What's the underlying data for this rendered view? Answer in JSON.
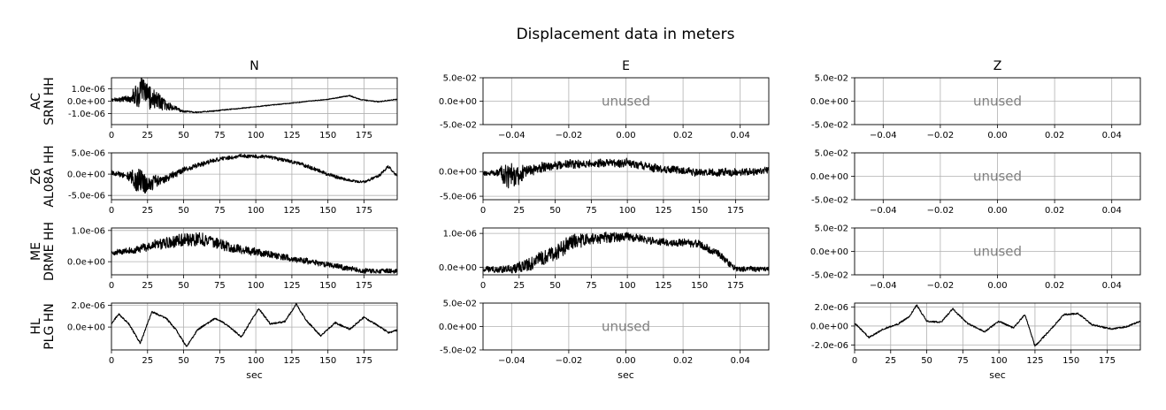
{
  "chart_data": {
    "type": "line",
    "title": "Displacement data in meters",
    "columns": [
      "N",
      "E",
      "Z"
    ],
    "stations": [
      {
        "network": "AC",
        "station": "SRN HH"
      },
      {
        "network": "Z6",
        "station": "AL08A HH"
      },
      {
        "network": "ME",
        "station": "DRME HH"
      },
      {
        "network": "HL",
        "station": "PLG HN"
      }
    ],
    "xlabel": "sec",
    "unused_label": "unused",
    "time_xlim": [
      0,
      198
    ],
    "time_xticks": [
      "0",
      "25",
      "50",
      "75",
      "100",
      "125",
      "150",
      "175"
    ],
    "unused_xlim": [
      -0.05,
      0.05
    ],
    "unused_xticks": [
      "−0.04",
      "−0.02",
      "0.00",
      "0.02",
      "0.04"
    ],
    "unused_ylim": [
      -0.05,
      0.05
    ],
    "unused_yticks": [
      "5.0e-02",
      "0.0e+00",
      "-5.0e-02"
    ],
    "panels": [
      [
        {
          "used": true,
          "ylim": [
            -1.9e-06,
            1.9e-06
          ],
          "yticks": [
            1e-06,
            0,
            -1e-06
          ],
          "yticklabels": [
            "1.0e-06",
            "0.0e+00",
            "-1.0e-06"
          ],
          "noise_scale": 0.12,
          "envelope": [
            [
              0,
              1e-07,
              1.5e-07
            ],
            [
              12,
              2e-07,
              3e-07
            ],
            [
              15,
              5e-07,
              8e-07
            ],
            [
              20,
              6e-07,
              1.6e-06
            ],
            [
              24,
              5e-07,
              1.3e-06
            ],
            [
              30,
              1e-07,
              1e-06
            ],
            [
              40,
              -4e-07,
              4e-07
            ],
            [
              50,
              -8.5e-07,
              1e-07
            ],
            [
              60,
              -9e-07,
              6e-08
            ],
            [
              75,
              -7.5e-07,
              5e-08
            ],
            [
              100,
              -4.5e-07,
              4e-08
            ],
            [
              125,
              -1.5e-07,
              4e-08
            ],
            [
              150,
              1.5e-07,
              4e-08
            ],
            [
              165,
              4.5e-07,
              5e-08
            ],
            [
              172,
              1.5e-07,
              5e-08
            ],
            [
              185,
              -5e-08,
              5e-08
            ],
            [
              198,
              1.5e-07,
              5e-08
            ]
          ]
        },
        {
          "used": false
        },
        {
          "used": false
        }
      ],
      [
        {
          "used": true,
          "ylim": [
            -6e-06,
            5e-06
          ],
          "yticks": [
            5e-06,
            0,
            -5e-06
          ],
          "yticklabels": [
            "5.0e-06",
            "0.0e+00",
            "-5.0e-06"
          ],
          "noise_scale": 0.15,
          "envelope": [
            [
              0,
              3e-07,
              6e-07
            ],
            [
              10,
              -3e-07,
              8e-07
            ],
            [
              18,
              -1.5e-06,
              3.5e-06
            ],
            [
              25,
              -2e-06,
              2.5e-06
            ],
            [
              35,
              -1.5e-06,
              1.2e-06
            ],
            [
              50,
              1e-06,
              8e-07
            ],
            [
              70,
              3.2e-06,
              6e-07
            ],
            [
              90,
              4.3e-06,
              5e-07
            ],
            [
              110,
              4e-06,
              5e-07
            ],
            [
              130,
              2.5e-06,
              5e-07
            ],
            [
              150,
              0.0,
              5e-07
            ],
            [
              165,
              -1.5e-06,
              4e-07
            ],
            [
              175,
              -1.8e-06,
              4e-07
            ],
            [
              185,
              -5e-07,
              4e-07
            ],
            [
              192,
              1.8e-06,
              4e-07
            ],
            [
              198,
              -5e-07,
              4e-07
            ]
          ]
        },
        {
          "used": true,
          "ylim": [
            -5.7e-06,
            3.8e-06
          ],
          "yticks": [
            0,
            -5e-06
          ],
          "yticklabels": [
            "0.0e+00",
            "-5.0e-06"
          ],
          "noise_scale": 0.15,
          "envelope": [
            [
              0,
              -4e-07,
              5e-07
            ],
            [
              10,
              -2e-07,
              8e-07
            ],
            [
              16,
              -5e-07,
              3.5e-06
            ],
            [
              22,
              -8e-07,
              3e-06
            ],
            [
              30,
              2e-07,
              1.5e-06
            ],
            [
              50,
              1.3e-06,
              1e-06
            ],
            [
              75,
              1.6e-06,
              1e-06
            ],
            [
              100,
              1.8e-06,
              1e-06
            ],
            [
              125,
              5e-07,
              9e-07
            ],
            [
              150,
              -2e-07,
              9e-07
            ],
            [
              175,
              -1e-07,
              9e-07
            ],
            [
              198,
              2e-07,
              8e-07
            ]
          ]
        },
        {
          "used": false
        }
      ],
      [
        {
          "used": true,
          "ylim": [
            -4.2e-07,
            1.08e-06
          ],
          "yticks": [
            1e-06,
            0
          ],
          "yticklabels": [
            "1.0e-06",
            "0.0e+00"
          ],
          "noise_scale": 0.15,
          "envelope": [
            [
              0,
              3e-07,
              1e-07
            ],
            [
              15,
              3.5e-07,
              1.2e-07
            ],
            [
              30,
              5.5e-07,
              2e-07
            ],
            [
              50,
              7e-07,
              2.5e-07
            ],
            [
              60,
              7.5e-07,
              2.5e-07
            ],
            [
              75,
              5.5e-07,
              2e-07
            ],
            [
              100,
              3e-07,
              1.5e-07
            ],
            [
              125,
              1e-07,
              1.2e-07
            ],
            [
              150,
              -1e-07,
              1e-07
            ],
            [
              175,
              -3e-07,
              1e-07
            ],
            [
              198,
              -3e-07,
              8e-08
            ]
          ]
        },
        {
          "used": true,
          "ylim": [
            -2.2e-07,
            1.16e-06
          ],
          "yticks": [
            1e-06,
            0
          ],
          "yticklabels": [
            "1.0e-06",
            "0.0e+00"
          ],
          "noise_scale": 0.15,
          "envelope": [
            [
              0,
              -5e-08,
              1e-07
            ],
            [
              20,
              -5e-08,
              1.5e-07
            ],
            [
              35,
              1e-07,
              2.5e-07
            ],
            [
              50,
              4.5e-07,
              3e-07
            ],
            [
              60,
              7.5e-07,
              3e-07
            ],
            [
              80,
              8.5e-07,
              2e-07
            ],
            [
              100,
              9e-07,
              1.5e-07
            ],
            [
              125,
              7.5e-07,
              1.2e-07
            ],
            [
              150,
              7e-07,
              1.5e-07
            ],
            [
              165,
              3.5e-07,
              1.2e-07
            ],
            [
              175,
              -5e-08,
              1e-07
            ],
            [
              198,
              -5e-08,
              8e-08
            ]
          ]
        },
        {
          "used": false
        }
      ],
      [
        {
          "used": true,
          "ylim": [
            -2.1e-06,
            2.2e-06
          ],
          "yticks": [
            2e-06,
            0
          ],
          "yticklabels": [
            "2.0e-06",
            "0.0e+00"
          ],
          "noise_scale": 0.05,
          "envelope": [
            [
              0,
              3e-07,
              1e-07
            ],
            [
              5,
              1.2e-06,
              1e-07
            ],
            [
              12,
              3e-07,
              1e-07
            ],
            [
              20,
              -1.5e-06,
              1e-07
            ],
            [
              28,
              1.4e-06,
              1e-07
            ],
            [
              38,
              8e-07,
              1e-07
            ],
            [
              45,
              -3e-07,
              1e-07
            ],
            [
              52,
              -1.8e-06,
              1e-07
            ],
            [
              60,
              -2e-07,
              1e-07
            ],
            [
              72,
              8e-07,
              1e-07
            ],
            [
              80,
              2e-07,
              1e-07
            ],
            [
              90,
              -9e-07,
              1e-07
            ],
            [
              102,
              1.7e-06,
              1e-07
            ],
            [
              110,
              3e-07,
              1e-07
            ],
            [
              120,
              5e-07,
              1e-07
            ],
            [
              128,
              2.1e-06,
              1e-07
            ],
            [
              135,
              6e-07,
              1e-07
            ],
            [
              145,
              -8e-07,
              1e-07
            ],
            [
              155,
              4e-07,
              1e-07
            ],
            [
              165,
              -2e-07,
              1e-07
            ],
            [
              175,
              9e-07,
              1e-07
            ],
            [
              185,
              1e-07,
              1e-07
            ],
            [
              192,
              -5e-07,
              1e-07
            ],
            [
              198,
              -3e-07,
              1e-07
            ]
          ]
        },
        {
          "used": false
        },
        {
          "used": true,
          "ylim": [
            -2.5e-06,
            2.4e-06
          ],
          "yticks": [
            2e-06,
            0,
            -2e-06
          ],
          "yticklabels": [
            "2.0e-06",
            "0.0e+00",
            "-2.0e-06"
          ],
          "noise_scale": 0.05,
          "envelope": [
            [
              0,
              3e-07,
              1e-07
            ],
            [
              10,
              -1.2e-06,
              1e-07
            ],
            [
              20,
              -3e-07,
              1e-07
            ],
            [
              30,
              2e-07,
              1e-07
            ],
            [
              38,
              1e-06,
              1e-07
            ],
            [
              43,
              2.2e-06,
              1e-07
            ],
            [
              50,
              5e-07,
              1e-07
            ],
            [
              60,
              4e-07,
              1e-07
            ],
            [
              68,
              1.8e-06,
              1e-07
            ],
            [
              78,
              3e-07,
              1e-07
            ],
            [
              90,
              -6e-07,
              1e-07
            ],
            [
              100,
              5e-07,
              1e-07
            ],
            [
              110,
              -2e-07,
              1e-07
            ],
            [
              118,
              1.2e-06,
              1e-07
            ],
            [
              125,
              -2.1e-06,
              1e-07
            ],
            [
              135,
              -5e-07,
              1e-07
            ],
            [
              145,
              1.2e-06,
              1e-07
            ],
            [
              155,
              1.3e-06,
              1e-07
            ],
            [
              165,
              1e-07,
              1e-07
            ],
            [
              178,
              -3e-07,
              1e-07
            ],
            [
              188,
              -1e-07,
              1e-07
            ],
            [
              198,
              5e-07,
              1e-07
            ]
          ]
        }
      ]
    ]
  }
}
